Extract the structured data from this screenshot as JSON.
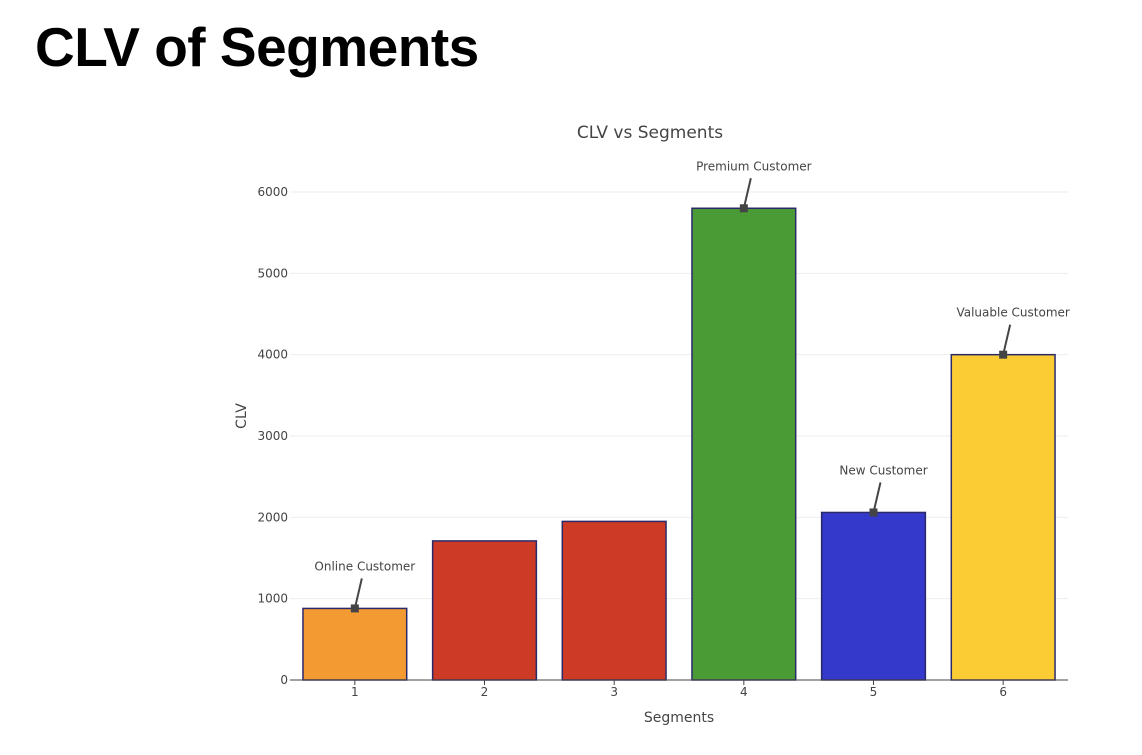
{
  "page": {
    "heading": "CLV of Segments"
  },
  "chart_data": {
    "type": "bar",
    "title": "CLV vs Segments",
    "xlabel": "Segments",
    "ylabel": "CLV",
    "categories": [
      "1",
      "2",
      "3",
      "4",
      "5",
      "6"
    ],
    "values": [
      880,
      1710,
      1950,
      5800,
      2060,
      4000
    ],
    "colors": [
      "#F39A33",
      "#CD3A26",
      "#CD3A26",
      "#4A9A36",
      "#3439CC",
      "#FBCC34"
    ],
    "bar_outline_color": "#2A2A6B",
    "ylim": [
      0,
      6300
    ],
    "yticks": [
      0,
      1000,
      2000,
      3000,
      4000,
      5000,
      6000
    ],
    "grid": true,
    "legend": "none",
    "annotations": [
      {
        "category": "1",
        "value": 880,
        "text": "Online Customer"
      },
      {
        "category": "4",
        "value": 5800,
        "text": "Premium Customer"
      },
      {
        "category": "5",
        "value": 2060,
        "text": "New Customer"
      },
      {
        "category": "6",
        "value": 4000,
        "text": "Valuable Customer"
      }
    ]
  }
}
